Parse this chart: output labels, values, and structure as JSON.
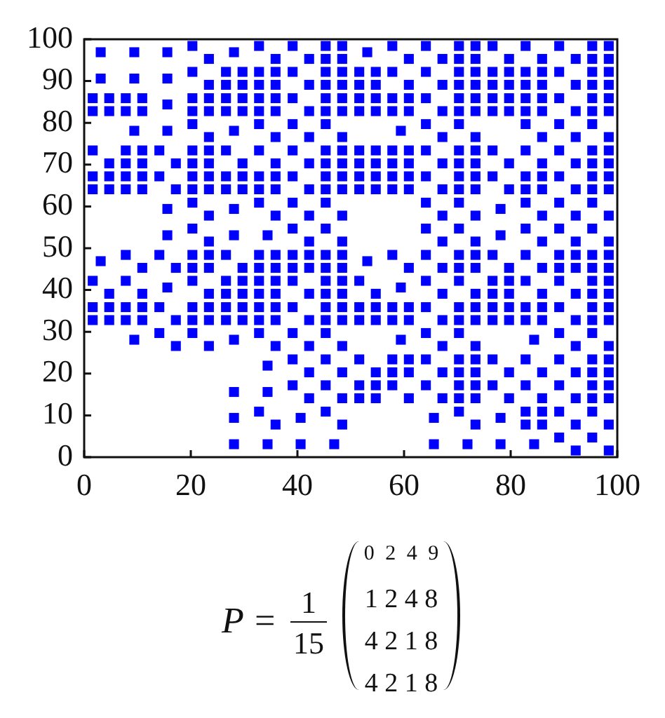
{
  "chart_data": {
    "type": "scatter",
    "x": [
      3.1,
      9.4,
      15.6,
      20.3,
      23.4,
      28.1,
      32.8,
      35.9,
      39.1,
      42.2,
      45.3,
      48.4,
      45.3,
      48.4,
      53.1,
      57.8,
      60.9,
      64.1,
      67.2,
      70.3,
      73.4,
      70.3,
      73.4,
      76.6,
      79.7,
      82.8,
      85.9,
      89.1,
      92.2,
      95.3,
      98.4,
      95.3,
      98.4,
      3.1,
      9.4,
      15.6,
      20.3,
      23.4,
      26.6,
      29.7,
      26.6,
      29.7,
      32.8,
      35.9,
      32.8,
      35.9,
      39.1,
      42.2,
      45.3,
      48.4,
      45.3,
      48.4,
      51.6,
      54.7,
      51.6,
      54.7,
      57.8,
      60.9,
      64.1,
      67.2,
      70.3,
      73.4,
      70.3,
      73.4,
      76.6,
      79.7,
      76.6,
      79.7,
      82.8,
      85.9,
      82.8,
      85.9,
      89.1,
      92.2,
      95.3,
      98.4,
      95.3,
      98.4,
      1.6,
      4.7,
      1.6,
      4.7,
      7.8,
      10.9,
      7.8,
      10.9,
      15.6,
      20.3,
      23.4,
      20.3,
      23.4,
      26.6,
      29.7,
      26.6,
      29.7,
      32.8,
      35.9,
      32.8,
      35.9,
      39.1,
      42.2,
      45.3,
      48.4,
      45.3,
      48.4,
      51.6,
      54.7,
      51.6,
      54.7,
      57.8,
      60.9,
      57.8,
      60.9,
      64.1,
      67.2,
      70.3,
      73.4,
      70.3,
      73.4,
      76.6,
      79.7,
      76.6,
      79.7,
      82.8,
      85.9,
      82.8,
      85.9,
      89.1,
      92.2,
      95.3,
      98.4,
      95.3,
      98.4,
      9.4,
      15.6,
      20.3,
      23.4,
      28.1,
      32.8,
      35.9,
      39.1,
      42.2,
      45.3,
      48.4,
      59.4,
      64.1,
      67.2,
      70.3,
      73.4,
      82.8,
      85.9,
      89.1,
      92.2,
      95.3,
      98.4,
      1.6,
      4.7,
      7.8,
      10.9,
      7.8,
      10.9,
      14.1,
      17.2,
      20.3,
      23.4,
      20.3,
      23.4,
      26.6,
      29.7,
      32.8,
      35.9,
      39.1,
      42.2,
      45.3,
      48.4,
      45.3,
      48.4,
      51.6,
      54.7,
      51.6,
      54.7,
      57.8,
      60.9,
      57.8,
      60.9,
      64.1,
      67.2,
      70.3,
      73.4,
      70.3,
      73.4,
      76.6,
      79.7,
      82.8,
      85.9,
      89.1,
      92.2,
      95.3,
      98.4,
      95.3,
      98.4,
      1.6,
      4.7,
      1.6,
      4.7,
      7.8,
      10.9,
      7.8,
      10.9,
      14.1,
      17.2,
      20.3,
      23.4,
      20.3,
      23.4,
      26.6,
      29.7,
      26.6,
      29.7,
      32.8,
      35.9,
      32.8,
      35.9,
      39.1,
      42.2,
      45.3,
      48.4,
      45.3,
      48.4,
      51.6,
      54.7,
      51.6,
      54.7,
      57.8,
      60.9,
      57.8,
      60.9,
      64.1,
      67.2,
      70.3,
      73.4,
      70.3,
      73.4,
      76.6,
      79.7,
      82.8,
      85.9,
      82.8,
      85.9,
      89.1,
      92.2,
      95.3,
      98.4,
      95.3,
      98.4,
      15.6,
      20.3,
      23.4,
      28.1,
      32.8,
      35.9,
      39.1,
      42.2,
      45.3,
      48.4,
      64.1,
      67.2,
      70.3,
      73.4,
      78.1,
      82.8,
      85.9,
      89.1,
      92.2,
      95.3,
      98.4,
      15.6,
      20.3,
      23.4,
      28.1,
      34.4,
      39.1,
      42.2,
      45.3,
      48.4,
      64.1,
      67.2,
      70.3,
      73.4,
      78.1,
      82.8,
      85.9,
      89.1,
      92.2,
      95.3,
      98.4,
      3.1,
      7.8,
      10.9,
      14.1,
      17.2,
      20.3,
      23.4,
      20.3,
      23.4,
      26.6,
      29.7,
      32.8,
      35.9,
      32.8,
      35.9,
      39.1,
      42.2,
      39.1,
      42.2,
      45.3,
      48.4,
      45.3,
      48.4,
      53.1,
      57.8,
      60.9,
      64.1,
      67.2,
      70.3,
      73.4,
      70.3,
      73.4,
      76.6,
      79.7,
      82.8,
      85.9,
      89.1,
      92.2,
      89.1,
      92.2,
      95.3,
      98.4,
      95.3,
      98.4,
      1.6,
      4.7,
      7.8,
      10.9,
      15.6,
      20.3,
      23.4,
      26.6,
      29.7,
      26.6,
      29.7,
      32.8,
      35.9,
      32.8,
      35.9,
      39.1,
      42.2,
      45.3,
      48.4,
      45.3,
      48.4,
      51.6,
      54.7,
      59.4,
      64.1,
      67.2,
      70.3,
      73.4,
      76.6,
      79.7,
      76.6,
      79.7,
      82.8,
      85.9,
      89.1,
      92.2,
      95.3,
      98.4,
      95.3,
      98.4,
      1.6,
      4.7,
      1.6,
      4.7,
      7.8,
      10.9,
      7.8,
      10.9,
      14.1,
      17.2,
      20.3,
      23.4,
      20.3,
      23.4,
      26.6,
      29.7,
      26.6,
      29.7,
      32.8,
      35.9,
      32.8,
      35.9,
      39.1,
      42.2,
      45.3,
      48.4,
      45.3,
      48.4,
      51.6,
      54.7,
      51.6,
      54.7,
      57.8,
      60.9,
      57.8,
      60.9,
      64.1,
      67.2,
      70.3,
      73.4,
      70.3,
      73.4,
      76.6,
      79.7,
      76.6,
      79.7,
      82.8,
      85.9,
      82.8,
      85.9,
      89.1,
      92.2,
      95.3,
      98.4,
      95.3,
      98.4,
      9.4,
      14.1,
      17.2,
      20.3,
      23.4,
      28.1,
      32.8,
      35.9,
      39.1,
      42.2,
      45.3,
      48.4,
      59.4,
      64.1,
      67.2,
      70.3,
      73.4,
      84.4,
      89.1,
      92.2,
      95.3,
      98.4,
      34.4,
      39.1,
      42.2,
      45.3,
      48.4,
      51.6,
      54.7,
      57.8,
      60.9,
      57.8,
      60.9,
      64.1,
      67.2,
      70.3,
      73.4,
      70.3,
      73.4,
      76.6,
      79.7,
      82.8,
      85.9,
      89.1,
      92.2,
      95.3,
      98.4,
      95.3,
      98.4,
      28.1,
      34.4,
      39.1,
      42.2,
      45.3,
      48.4,
      51.6,
      54.7,
      51.6,
      54.7,
      57.8,
      60.9,
      64.1,
      67.2,
      70.3,
      73.4,
      70.3,
      73.4,
      76.6,
      79.7,
      82.8,
      85.9,
      89.1,
      92.2,
      95.3,
      98.4,
      95.3,
      98.4,
      28.1,
      32.8,
      35.9,
      40.6,
      45.3,
      48.4,
      65.6,
      70.3,
      73.4,
      78.1,
      82.8,
      85.9,
      82.8,
      85.9,
      89.1,
      92.2,
      95.3,
      98.4,
      28.1,
      34.4,
      40.6,
      46.9,
      65.6,
      71.9,
      78.1,
      84.4,
      89.1,
      92.2,
      95.3,
      98.4
    ],
    "values": [
      96.9,
      96.9,
      96.9,
      98.4,
      95.3,
      96.9,
      98.4,
      95.3,
      98.4,
      95.3,
      95.3,
      95.3,
      98.4,
      98.4,
      96.9,
      98.4,
      95.3,
      98.4,
      95.3,
      95.3,
      95.3,
      98.4,
      98.4,
      98.4,
      95.3,
      98.4,
      95.3,
      98.4,
      95.3,
      95.3,
      95.3,
      98.4,
      98.4,
      90.6,
      90.6,
      90.6,
      92.2,
      89.1,
      89.1,
      89.1,
      92.2,
      92.2,
      89.1,
      89.1,
      92.2,
      92.2,
      92.2,
      89.1,
      89.1,
      89.1,
      92.2,
      92.2,
      89.1,
      89.1,
      92.2,
      92.2,
      92.2,
      89.1,
      92.2,
      89.1,
      89.1,
      89.1,
      92.2,
      92.2,
      89.1,
      89.1,
      92.2,
      92.2,
      89.1,
      89.1,
      92.2,
      92.2,
      92.2,
      89.1,
      89.1,
      89.1,
      92.2,
      92.2,
      82.8,
      82.8,
      85.9,
      85.9,
      82.8,
      82.8,
      85.9,
      85.9,
      84.4,
      82.8,
      82.8,
      85.9,
      85.9,
      82.8,
      82.8,
      85.9,
      85.9,
      82.8,
      82.8,
      85.9,
      85.9,
      85.9,
      82.8,
      82.8,
      82.8,
      85.9,
      85.9,
      82.8,
      82.8,
      85.9,
      85.9,
      82.8,
      82.8,
      85.9,
      85.9,
      85.9,
      82.8,
      82.8,
      82.8,
      85.9,
      85.9,
      82.8,
      82.8,
      85.9,
      85.9,
      82.8,
      82.8,
      85.9,
      85.9,
      85.9,
      82.8,
      82.8,
      82.8,
      85.9,
      85.9,
      78.1,
      78.1,
      79.7,
      76.6,
      78.1,
      79.7,
      76.6,
      79.7,
      76.6,
      79.7,
      76.6,
      78.1,
      79.7,
      76.6,
      79.7,
      76.6,
      79.7,
      76.6,
      79.7,
      76.6,
      79.7,
      76.6,
      73.4,
      70.3,
      70.3,
      70.3,
      73.4,
      73.4,
      73.4,
      70.3,
      70.3,
      70.3,
      73.4,
      73.4,
      73.4,
      70.3,
      73.4,
      70.3,
      73.4,
      70.3,
      70.3,
      70.3,
      73.4,
      73.4,
      70.3,
      70.3,
      73.4,
      73.4,
      70.3,
      70.3,
      73.4,
      73.4,
      73.4,
      70.3,
      70.3,
      70.3,
      73.4,
      73.4,
      73.4,
      70.3,
      73.4,
      70.3,
      73.4,
      70.3,
      70.3,
      70.3,
      73.4,
      73.4,
      64.1,
      64.1,
      67.2,
      67.2,
      64.1,
      64.1,
      67.2,
      67.2,
      67.2,
      64.1,
      64.1,
      64.1,
      67.2,
      67.2,
      64.1,
      64.1,
      67.2,
      67.2,
      64.1,
      64.1,
      67.2,
      67.2,
      67.2,
      64.1,
      64.1,
      64.1,
      67.2,
      67.2,
      64.1,
      64.1,
      67.2,
      67.2,
      64.1,
      64.1,
      67.2,
      67.2,
      67.2,
      64.1,
      64.1,
      64.1,
      67.2,
      67.2,
      67.2,
      64.1,
      64.1,
      64.1,
      67.2,
      67.2,
      67.2,
      64.1,
      64.1,
      64.1,
      67.2,
      67.2,
      59.4,
      60.9,
      57.8,
      59.4,
      60.9,
      57.8,
      60.9,
      57.8,
      60.9,
      57.8,
      60.9,
      57.8,
      60.9,
      57.8,
      59.4,
      60.9,
      57.8,
      60.9,
      57.8,
      60.9,
      57.8,
      53.1,
      54.7,
      51.6,
      53.1,
      53.1,
      54.7,
      51.6,
      54.7,
      51.6,
      54.7,
      51.6,
      54.7,
      51.6,
      53.1,
      54.7,
      51.6,
      54.7,
      51.6,
      54.7,
      51.6,
      46.9,
      48.4,
      45.3,
      48.4,
      45.3,
      45.3,
      45.3,
      48.4,
      48.4,
      48.4,
      45.3,
      45.3,
      45.3,
      48.4,
      48.4,
      45.3,
      45.3,
      48.4,
      48.4,
      45.3,
      45.3,
      48.4,
      48.4,
      46.9,
      48.4,
      45.3,
      48.4,
      45.3,
      45.3,
      45.3,
      48.4,
      48.4,
      48.4,
      45.3,
      48.4,
      45.3,
      45.3,
      45.3,
      48.4,
      48.4,
      45.3,
      45.3,
      48.4,
      48.4,
      42.2,
      39.1,
      42.2,
      39.1,
      40.6,
      42.2,
      39.1,
      39.1,
      39.1,
      42.2,
      42.2,
      39.1,
      39.1,
      42.2,
      42.2,
      42.2,
      39.1,
      39.1,
      39.1,
      42.2,
      42.2,
      42.2,
      39.1,
      40.6,
      42.2,
      39.1,
      42.2,
      39.1,
      39.1,
      39.1,
      42.2,
      42.2,
      42.2,
      39.1,
      42.2,
      39.1,
      39.1,
      39.1,
      42.2,
      42.2,
      32.8,
      32.8,
      35.9,
      35.9,
      32.8,
      32.8,
      35.9,
      35.9,
      35.9,
      32.8,
      32.8,
      32.8,
      35.9,
      35.9,
      32.8,
      32.8,
      35.9,
      35.9,
      32.8,
      32.8,
      35.9,
      35.9,
      35.9,
      32.8,
      32.8,
      32.8,
      35.9,
      35.9,
      32.8,
      32.8,
      35.9,
      35.9,
      32.8,
      32.8,
      35.9,
      35.9,
      35.9,
      32.8,
      32.8,
      32.8,
      35.9,
      35.9,
      32.8,
      32.8,
      35.9,
      35.9,
      32.8,
      32.8,
      35.9,
      35.9,
      35.9,
      32.8,
      32.8,
      32.8,
      35.9,
      35.9,
      28.1,
      29.7,
      26.6,
      29.7,
      26.6,
      28.1,
      29.7,
      26.6,
      29.7,
      26.6,
      29.7,
      26.6,
      28.1,
      29.7,
      26.6,
      29.7,
      26.6,
      28.1,
      29.7,
      26.6,
      29.7,
      26.6,
      21.9,
      23.4,
      20.3,
      23.4,
      20.3,
      23.4,
      20.3,
      20.3,
      20.3,
      23.4,
      23.4,
      23.4,
      20.3,
      20.3,
      20.3,
      23.4,
      23.4,
      23.4,
      20.3,
      23.4,
      20.3,
      23.4,
      20.3,
      20.3,
      20.3,
      23.4,
      23.4,
      15.6,
      15.6,
      17.2,
      14.1,
      17.2,
      14.1,
      14.1,
      14.1,
      17.2,
      17.2,
      17.2,
      14.1,
      17.2,
      14.1,
      14.1,
      14.1,
      17.2,
      17.2,
      17.2,
      14.1,
      17.2,
      14.1,
      17.2,
      14.1,
      14.1,
      14.1,
      17.2,
      17.2,
      9.4,
      10.9,
      7.8,
      9.4,
      10.9,
      7.8,
      9.4,
      10.9,
      7.8,
      9.4,
      7.8,
      7.8,
      10.9,
      10.9,
      10.9,
      7.8,
      10.9,
      7.8,
      3.1,
      3.1,
      3.1,
      3.1,
      3.1,
      3.1,
      3.1,
      3.1,
      4.7,
      1.6,
      4.7,
      1.6
    ],
    "color": "#0000ff",
    "marker": "square",
    "xlim": [
      0,
      100
    ],
    "ylim": [
      0,
      100
    ],
    "xticks": [
      0,
      20,
      40,
      60,
      80,
      100
    ],
    "yticks": [
      0,
      10,
      20,
      30,
      40,
      50,
      60,
      70,
      80,
      90,
      100
    ],
    "annotations": [
      "P =",
      "1",
      "15",
      "0 2 4 9",
      "1 2 4 8",
      "4 2 1 8",
      "4 2 1 8"
    ]
  }
}
